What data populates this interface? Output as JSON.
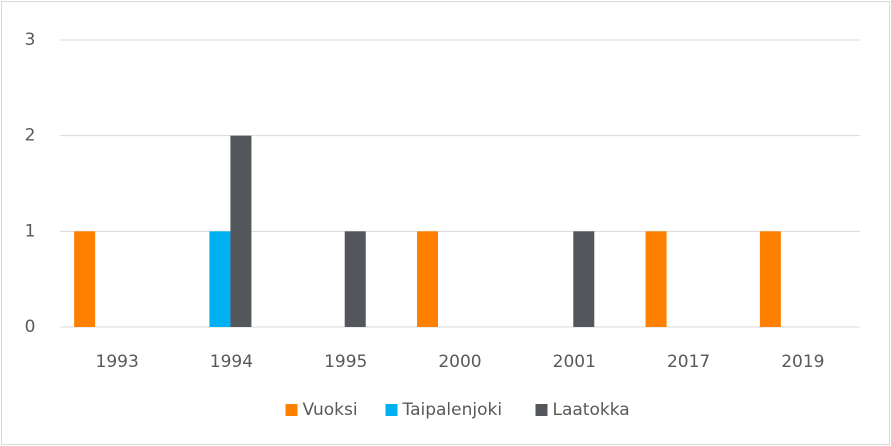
{
  "chart_data": {
    "type": "bar",
    "categories": [
      "1993",
      "1994",
      "1995",
      "2000",
      "2001",
      "2017",
      "2019"
    ],
    "series": [
      {
        "name": "Vuoksi",
        "color": "#ff8000",
        "values": [
          1,
          0,
          0,
          1,
          0,
          1,
          1
        ]
      },
      {
        "name": "Taipalenjoki",
        "color": "#00b0f0",
        "values": [
          0,
          1,
          0,
          0,
          0,
          0,
          0
        ]
      },
      {
        "name": "Laatokka",
        "color": "#53565a",
        "values": [
          0,
          2,
          1,
          0,
          1,
          0,
          0
        ]
      }
    ],
    "ylim": [
      0,
      3
    ],
    "yticks": [
      0,
      1,
      2,
      3
    ],
    "grid": true,
    "legend": "bottom"
  }
}
